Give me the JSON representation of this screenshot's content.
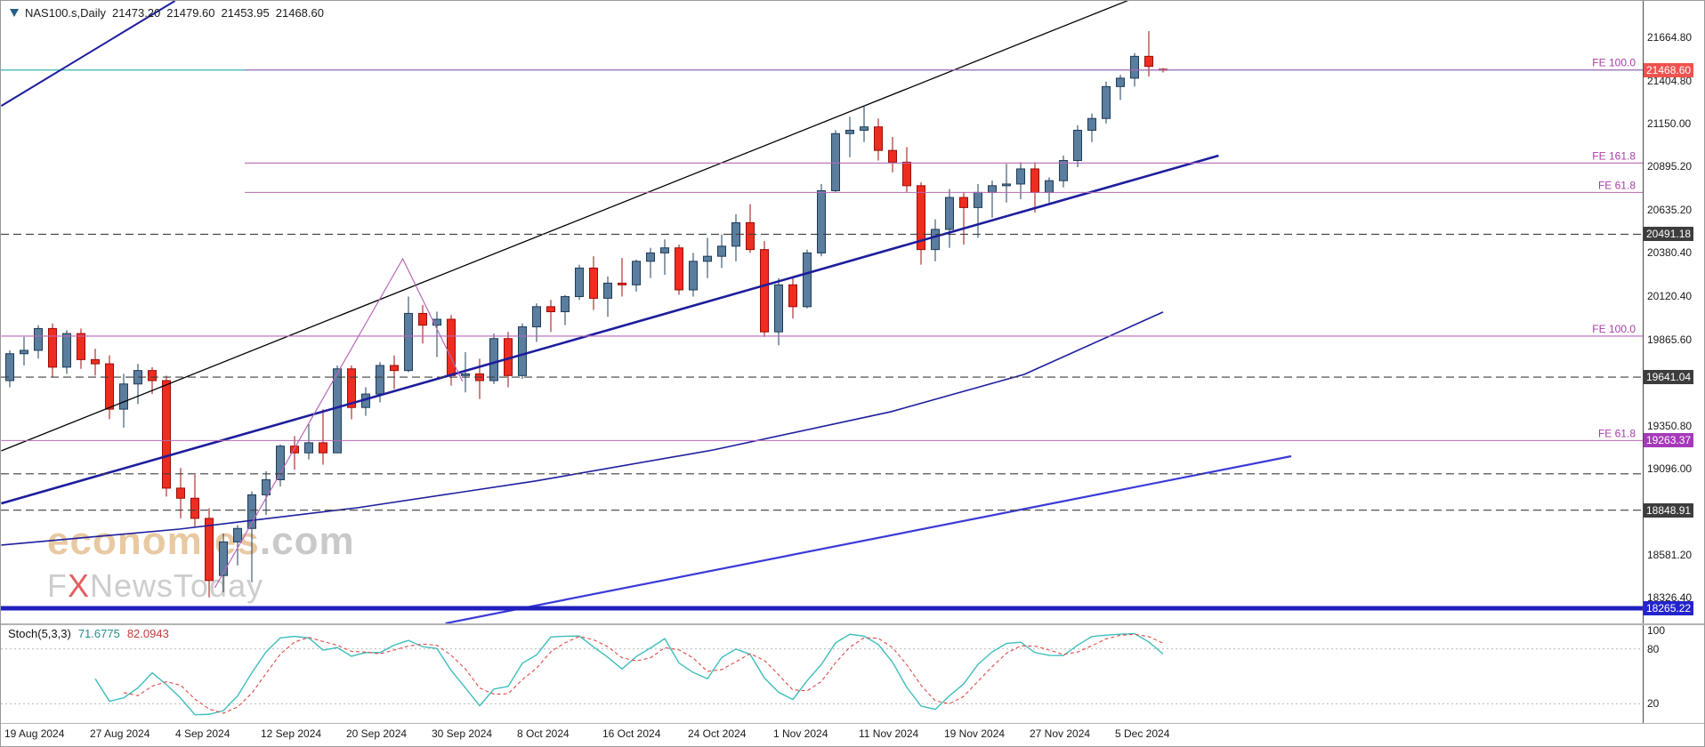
{
  "symbol_info": {
    "symbol": "NAS100.s,Daily",
    "open": "21473.20",
    "high": "21479.60",
    "low": "21453.95",
    "close": "21468.60"
  },
  "watermark": {
    "brand": "economies",
    "brand_suffix": ".com",
    "sub_f": "F",
    "sub_x": "X",
    "sub_rest": "NewsToday"
  },
  "colors": {
    "bull_body": "#5b7d9e",
    "bull_edge": "#1e3c58",
    "bear_body": "#ef2c20",
    "bear_edge": "#9a0e08",
    "fib_line": "#b668b6",
    "fib_label": "#a93ca9",
    "dashed_line": "#3f3f3f",
    "stoch_main": "#3fbdbd",
    "stoch_signal": "#e04848",
    "badge_current": "#ef5350",
    "badge_dark": "#3d3d3d",
    "badge_purple": "#a53ab9",
    "badge_blue": "#2424cc"
  },
  "price_axis": {
    "labels": [
      {
        "text": "21664.80",
        "price": 21664.8
      },
      {
        "text": "21404.80",
        "price": 21404.8
      },
      {
        "text": "21150.00",
        "price": 21150.0
      },
      {
        "text": "20895.20",
        "price": 20895.2
      },
      {
        "text": "20635.20",
        "price": 20635.2
      },
      {
        "text": "20380.40",
        "price": 20380.4
      },
      {
        "text": "20120.40",
        "price": 20120.4
      },
      {
        "text": "19865.60",
        "price": 19865.6
      },
      {
        "text": "19350.80",
        "price": 19350.8
      },
      {
        "text": "19096.00",
        "price": 19096.0
      },
      {
        "text": "18581.20",
        "price": 18581.2
      },
      {
        "text": "18326.40",
        "price": 18326.4
      }
    ],
    "badges": [
      {
        "text": "21468.60",
        "price": 21468.6,
        "type": "current"
      },
      {
        "text": "20491.18",
        "price": 20491.18,
        "type": "dark"
      },
      {
        "text": "19641.04",
        "price": 19641.04,
        "type": "dark"
      },
      {
        "text": "19263.37",
        "price": 19263.37,
        "type": "purple"
      },
      {
        "text": "18848.91",
        "price": 18848.91,
        "type": "dark"
      },
      {
        "text": "18265.22",
        "price": 18265.22,
        "type": "blue"
      }
    ]
  },
  "time_axis": {
    "ticks": [
      {
        "index": 0,
        "label": "19 Aug 2024"
      },
      {
        "index": 6,
        "label": "27 Aug 2024"
      },
      {
        "index": 12,
        "label": "4 Sep 2024"
      },
      {
        "index": 18,
        "label": "12 Sep 2024"
      },
      {
        "index": 24,
        "label": "20 Sep 2024"
      },
      {
        "index": 30,
        "label": "30 Sep 2024"
      },
      {
        "index": 36,
        "label": "8 Oct 2024"
      },
      {
        "index": 42,
        "label": "16 Oct 2024"
      },
      {
        "index": 48,
        "label": "24 Oct 2024"
      },
      {
        "index": 54,
        "label": "1 Nov 2024"
      },
      {
        "index": 60,
        "label": "11 Nov 2024"
      },
      {
        "index": 66,
        "label": "19 Nov 2024"
      },
      {
        "index": 72,
        "label": "27 Nov 2024"
      },
      {
        "index": 78,
        "label": "5 Dec 2024"
      }
    ]
  },
  "chart_data": {
    "type": "candlestick",
    "symbol": "NAS100.s",
    "timeframe": "Daily",
    "last_quote": {
      "open": 21473.2,
      "high": 21479.6,
      "low": 21453.95,
      "close": 21468.6
    },
    "y_axis": {
      "top_price": 21880,
      "bottom_price": 18175
    },
    "dates": [
      "2024-08-19",
      "2024-08-20",
      "2024-08-21",
      "2024-08-22",
      "2024-08-23",
      "2024-08-26",
      "2024-08-27",
      "2024-08-28",
      "2024-08-29",
      "2024-08-30",
      "2024-09-02",
      "2024-09-03",
      "2024-09-04",
      "2024-09-05",
      "2024-09-06",
      "2024-09-09",
      "2024-09-10",
      "2024-09-11",
      "2024-09-12",
      "2024-09-13",
      "2024-09-16",
      "2024-09-17",
      "2024-09-18",
      "2024-09-19",
      "2024-09-20",
      "2024-09-23",
      "2024-09-24",
      "2024-09-25",
      "2024-09-26",
      "2024-09-27",
      "2024-09-30",
      "2024-10-01",
      "2024-10-02",
      "2024-10-03",
      "2024-10-04",
      "2024-10-07",
      "2024-10-08",
      "2024-10-09",
      "2024-10-10",
      "2024-10-11",
      "2024-10-14",
      "2024-10-15",
      "2024-10-16",
      "2024-10-17",
      "2024-10-18",
      "2024-10-21",
      "2024-10-22",
      "2024-10-23",
      "2024-10-24",
      "2024-10-25",
      "2024-10-28",
      "2024-10-29",
      "2024-10-30",
      "2024-10-31",
      "2024-11-01",
      "2024-11-04",
      "2024-11-05",
      "2024-11-06",
      "2024-11-07",
      "2024-11-08",
      "2024-11-11",
      "2024-11-12",
      "2024-11-13",
      "2024-11-14",
      "2024-11-15",
      "2024-11-18",
      "2024-11-19",
      "2024-11-20",
      "2024-11-21",
      "2024-11-22",
      "2024-11-25",
      "2024-11-26",
      "2024-11-27",
      "2024-11-28",
      "2024-11-29",
      "2024-12-02",
      "2024-12-03",
      "2024-12-04",
      "2024-12-05",
      "2024-12-06",
      "2024-12-09",
      "2024-12-10"
    ],
    "ohlc": [
      [
        19620,
        19800,
        19580,
        19780
      ],
      [
        19780,
        19880,
        19710,
        19800
      ],
      [
        19800,
        19950,
        19750,
        19930
      ],
      [
        19930,
        19960,
        19640,
        19700
      ],
      [
        19700,
        19920,
        19660,
        19900
      ],
      [
        19900,
        19930,
        19690,
        19745
      ],
      [
        19745,
        19810,
        19650,
        19720
      ],
      [
        19720,
        19770,
        19390,
        19450
      ],
      [
        19450,
        19660,
        19340,
        19600
      ],
      [
        19600,
        19720,
        19480,
        19680
      ],
      [
        19680,
        19700,
        19540,
        19620
      ],
      [
        19620,
        19650,
        18930,
        18980
      ],
      [
        18980,
        19100,
        18800,
        18920
      ],
      [
        18920,
        19060,
        18750,
        18800
      ],
      [
        18800,
        18860,
        18330,
        18430
      ],
      [
        18460,
        18710,
        18360,
        18660
      ],
      [
        18660,
        18760,
        18520,
        18740
      ],
      [
        18740,
        18960,
        18420,
        18940
      ],
      [
        18940,
        19080,
        18820,
        19030
      ],
      [
        19030,
        19240,
        18990,
        19230
      ],
      [
        19230,
        19290,
        19090,
        19190
      ],
      [
        19190,
        19360,
        19150,
        19250
      ],
      [
        19250,
        19450,
        19120,
        19190
      ],
      [
        19190,
        19710,
        19190,
        19690
      ],
      [
        19690,
        19710,
        19390,
        19460
      ],
      [
        19460,
        19580,
        19410,
        19540
      ],
      [
        19540,
        19730,
        19490,
        19710
      ],
      [
        19710,
        19770,
        19570,
        19680
      ],
      [
        19680,
        20120,
        19670,
        20020
      ],
      [
        20020,
        20070,
        19840,
        19950
      ],
      [
        19950,
        20030,
        19760,
        19985
      ],
      [
        19985,
        20010,
        19590,
        19650
      ],
      [
        19650,
        19790,
        19550,
        19660
      ],
      [
        19660,
        19750,
        19510,
        19620
      ],
      [
        19620,
        19900,
        19600,
        19870
      ],
      [
        19870,
        19910,
        19580,
        19650
      ],
      [
        19650,
        19960,
        19630,
        19940
      ],
      [
        19940,
        20080,
        19850,
        20060
      ],
      [
        20060,
        20100,
        19910,
        20030
      ],
      [
        20030,
        20130,
        19950,
        20120
      ],
      [
        20120,
        20310,
        20100,
        20290
      ],
      [
        20290,
        20360,
        20040,
        20110
      ],
      [
        20110,
        20240,
        20000,
        20200
      ],
      [
        20200,
        20350,
        20120,
        20190
      ],
      [
        20190,
        20340,
        20150,
        20330
      ],
      [
        20330,
        20410,
        20230,
        20380
      ],
      [
        20380,
        20460,
        20250,
        20410
      ],
      [
        20410,
        20430,
        20130,
        20160
      ],
      [
        20160,
        20380,
        20120,
        20330
      ],
      [
        20330,
        20470,
        20230,
        20360
      ],
      [
        20360,
        20490,
        20290,
        20420
      ],
      [
        20420,
        20610,
        20330,
        20560
      ],
      [
        20560,
        20670,
        20380,
        20400
      ],
      [
        20400,
        20450,
        19880,
        19910
      ],
      [
        19910,
        20230,
        19830,
        20190
      ],
      [
        20190,
        20240,
        19990,
        20060
      ],
      [
        20060,
        20400,
        20050,
        20380
      ],
      [
        20380,
        20790,
        20360,
        20750
      ],
      [
        20750,
        21110,
        20740,
        21090
      ],
      [
        21090,
        21190,
        20950,
        21110
      ],
      [
        21110,
        21250,
        21040,
        21130
      ],
      [
        21130,
        21180,
        20930,
        20990
      ],
      [
        20990,
        21070,
        20860,
        20920
      ],
      [
        20920,
        21010,
        20740,
        20780
      ],
      [
        20780,
        20800,
        20310,
        20400
      ],
      [
        20400,
        20580,
        20330,
        20520
      ],
      [
        20520,
        20760,
        20410,
        20710
      ],
      [
        20710,
        20740,
        20430,
        20650
      ],
      [
        20650,
        20790,
        20470,
        20740
      ],
      [
        20740,
        20810,
        20590,
        20780
      ],
      [
        20780,
        20910,
        20680,
        20790
      ],
      [
        20790,
        20920,
        20700,
        20880
      ],
      [
        20880,
        20920,
        20620,
        20740
      ],
      [
        20740,
        20830,
        20680,
        20810
      ],
      [
        20810,
        20960,
        20770,
        20930
      ],
      [
        20930,
        21140,
        20890,
        21110
      ],
      [
        21110,
        21210,
        21040,
        21180
      ],
      [
        21180,
        21400,
        21150,
        21370
      ],
      [
        21370,
        21440,
        21290,
        21420
      ],
      [
        21420,
        21570,
        21370,
        21550
      ],
      [
        21550,
        21700,
        21430,
        21490
      ],
      [
        21473.2,
        21479.6,
        21453.95,
        21468.6
      ]
    ],
    "current_price_line": {
      "price": 21468.6,
      "color": "#35b6b6",
      "width": 1.2
    },
    "trendlines": [
      {
        "name": "upper-channel-line",
        "color": "#000000",
        "width": 1.3,
        "points": [
          [
            -0.6,
            19202
          ],
          [
            79.7,
            21922
          ]
        ]
      },
      {
        "name": "steep-trendline",
        "color": "#1d1d9e",
        "width": 2,
        "points": [
          [
            -0.6,
            21255
          ],
          [
            11.6,
            21880
          ]
        ]
      },
      {
        "name": "main-uptrend-line",
        "color": "#1d1d9e",
        "width": 2.6,
        "points": [
          [
            -0.6,
            18889
          ],
          [
            84.9,
            20959
          ]
        ]
      },
      {
        "name": "lower-support-trendline",
        "color": "#3a3ad8",
        "width": 2.2,
        "points": [
          [
            30.6,
            18175
          ],
          [
            90,
            19170
          ]
        ]
      }
    ],
    "moving_average": {
      "name": "long-term-moving-average",
      "color": "#1d1d9e",
      "width": 1.6,
      "points": [
        [
          -0.6,
          18641
        ],
        [
          11.9,
          18736
        ],
        [
          24.4,
          18863
        ],
        [
          36.9,
          19022
        ],
        [
          49.4,
          19207
        ],
        [
          61.9,
          19435
        ],
        [
          71.25,
          19657
        ],
        [
          81,
          20028
        ]
      ]
    },
    "fib_drawing": {
      "color": "#b668b6",
      "points": [
        [
          14.4,
          18387
        ],
        [
          27.6,
          20345
        ],
        [
          31.8,
          19615
        ]
      ]
    },
    "fib_levels": [
      {
        "label": "FE 100.0",
        "price": 21468.6,
        "from_i": 16.5
      },
      {
        "label": "FE 161.8",
        "price": 20915,
        "from_i": 16.5
      },
      {
        "label": "FE 61.8",
        "price": 20740,
        "from_i": 16.5
      },
      {
        "label": "FE 100.0",
        "price": 19885,
        "from_i": -0.6
      },
      {
        "label": "FE 61.8",
        "price": 19263.37,
        "from_i": -0.6
      }
    ],
    "dashed_levels": [
      {
        "price": 20491.18
      },
      {
        "price": 19641.04
      },
      {
        "price": 19065
      },
      {
        "price": 18848.91
      }
    ],
    "support_line": {
      "price": 18265.22,
      "color": "#2020bf",
      "width": 5
    },
    "stochastic": {
      "name": "Stoch(5,3,3)",
      "k_value": "71.6775",
      "d_value": "82.0943",
      "period_k": 5,
      "slowing": 3,
      "period_d": 3,
      "levels": [
        80,
        20
      ],
      "scale_labels": [
        "100",
        "80",
        "20"
      ]
    }
  }
}
